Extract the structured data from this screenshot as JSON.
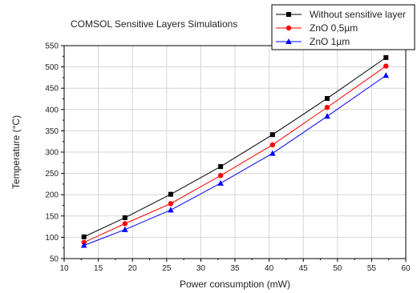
{
  "chart_data": {
    "type": "line",
    "title": "COMSOL Sensitive Layers Simulations",
    "xlabel": "Power consumption (mW)",
    "ylabel": "Temperature (°C)",
    "xlim": [
      10,
      60
    ],
    "ylim": [
      50,
      550
    ],
    "xticks": [
      10,
      15,
      20,
      25,
      30,
      35,
      40,
      45,
      50,
      55,
      60
    ],
    "yticks": [
      50,
      100,
      150,
      200,
      250,
      300,
      350,
      400,
      450,
      500,
      550
    ],
    "grid": true,
    "legend_position": "top-right",
    "series": [
      {
        "name": "Without sensitive layer",
        "color": "#000000",
        "marker": "square",
        "x": [
          12.9,
          18.9,
          25.6,
          32.9,
          40.5,
          48.5,
          57.1
        ],
        "y": [
          101,
          146,
          201,
          266,
          341,
          426,
          522
        ]
      },
      {
        "name": "ZnO 0,5µm",
        "color": "#ff0000",
        "marker": "circle",
        "x": [
          12.9,
          18.9,
          25.6,
          32.9,
          40.5,
          48.5,
          57.1
        ],
        "y": [
          88,
          132,
          179,
          245,
          317,
          405,
          502
        ]
      },
      {
        "name": "ZnO 1µm",
        "color": "#0000ff",
        "marker": "triangle",
        "x": [
          12.9,
          18.9,
          25.6,
          32.9,
          40.5,
          48.5,
          57.1
        ],
        "y": [
          81,
          118,
          164,
          227,
          297,
          384,
          480
        ]
      }
    ]
  }
}
